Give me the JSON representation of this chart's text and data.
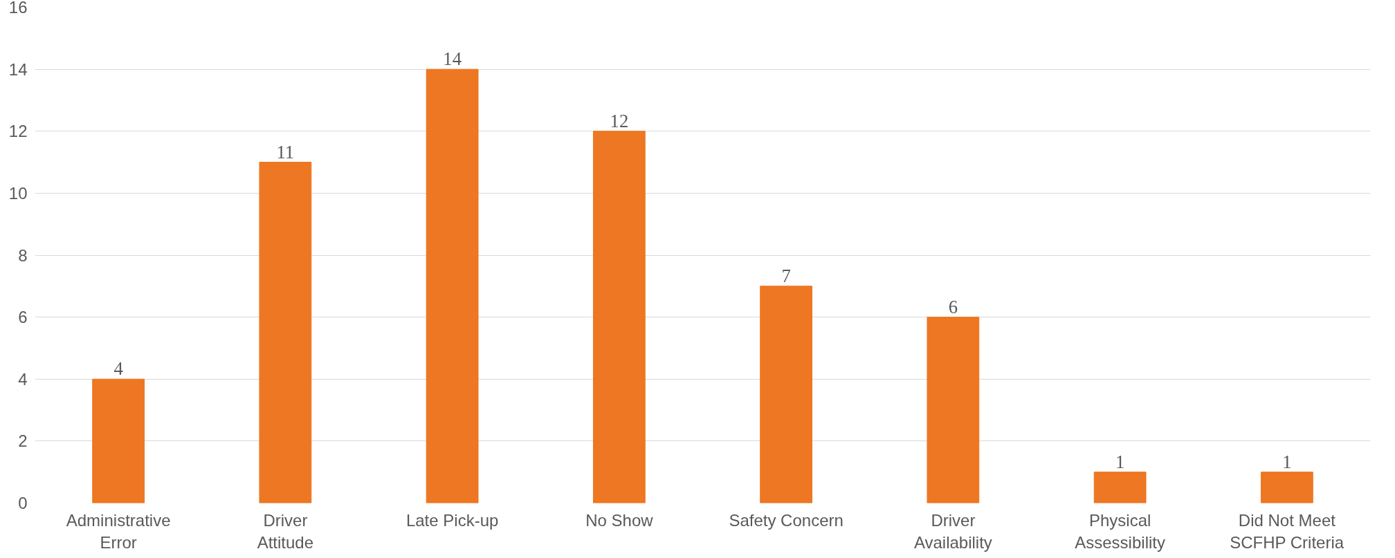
{
  "chart_data": {
    "type": "bar",
    "categories": [
      "Administrative Error",
      "Driver Attitude",
      "Late Pick-up",
      "No Show",
      "Safety Concern",
      "Driver Availability",
      "Physical Assessibility",
      "Did Not Meet SCFHP Criteria"
    ],
    "values": [
      4,
      11,
      14,
      12,
      7,
      6,
      1,
      1
    ],
    "color": "#ed7722",
    "ylim": [
      0,
      16
    ],
    "yticks": [
      0,
      2,
      4,
      6,
      8,
      10,
      12,
      14,
      16
    ],
    "grid": "y",
    "data_labels": true
  }
}
